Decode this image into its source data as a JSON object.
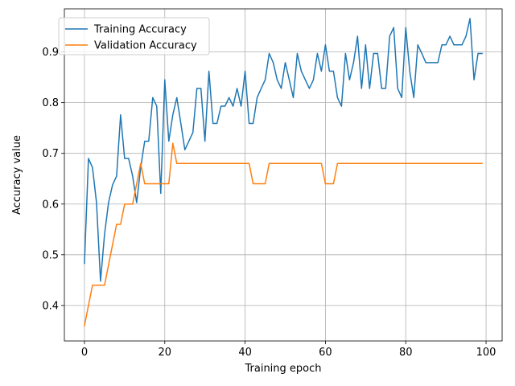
{
  "chart_data": {
    "type": "line",
    "xlabel": "Training epoch",
    "ylabel": "Accuracy value",
    "xlim": [
      -5,
      104
    ],
    "ylim": [
      0.33,
      0.985
    ],
    "xticks": [
      0,
      20,
      40,
      60,
      80,
      100
    ],
    "yticks": [
      0.4,
      0.5,
      0.6,
      0.7,
      0.8,
      0.9
    ],
    "xtick_labels": [
      "0",
      "20",
      "40",
      "60",
      "80",
      "100"
    ],
    "ytick_labels": [
      "0.4",
      "0.5",
      "0.6",
      "0.7",
      "0.8",
      "0.9"
    ],
    "grid": true,
    "legend_position": "upper-left",
    "series": [
      {
        "name": "Training Accuracy",
        "color": "#1f77b4",
        "x": [
          0,
          1,
          2,
          3,
          4,
          5,
          6,
          7,
          8,
          9,
          10,
          11,
          12,
          13,
          14,
          15,
          16,
          17,
          18,
          19,
          20,
          21,
          22,
          23,
          24,
          25,
          26,
          27,
          28,
          29,
          30,
          31,
          32,
          33,
          34,
          35,
          36,
          37,
          38,
          39,
          40,
          41,
          42,
          43,
          44,
          45,
          46,
          47,
          48,
          49,
          50,
          51,
          52,
          53,
          54,
          55,
          56,
          57,
          58,
          59,
          60,
          61,
          62,
          63,
          64,
          65,
          66,
          67,
          68,
          69,
          70,
          71,
          72,
          73,
          74,
          75,
          76,
          77,
          78,
          79,
          80,
          81,
          82,
          83,
          84,
          85,
          86,
          87,
          88,
          89,
          90,
          91,
          92,
          93,
          94,
          95,
          96,
          97,
          98,
          99
        ],
        "values": [
          0.483,
          0.69,
          0.672,
          0.603,
          0.448,
          0.54,
          0.603,
          0.638,
          0.655,
          0.776,
          0.69,
          0.69,
          0.655,
          0.603,
          0.672,
          0.724,
          0.724,
          0.81,
          0.793,
          0.621,
          0.845,
          0.724,
          0.776,
          0.81,
          0.759,
          0.707,
          0.724,
          0.741,
          0.828,
          0.828,
          0.724,
          0.862,
          0.759,
          0.759,
          0.793,
          0.793,
          0.81,
          0.793,
          0.828,
          0.793,
          0.862,
          0.759,
          0.759,
          0.81,
          0.828,
          0.845,
          0.897,
          0.879,
          0.845,
          0.828,
          0.879,
          0.845,
          0.81,
          0.897,
          0.862,
          0.845,
          0.828,
          0.845,
          0.897,
          0.862,
          0.914,
          0.862,
          0.862,
          0.81,
          0.793,
          0.897,
          0.845,
          0.879,
          0.931,
          0.828,
          0.914,
          0.828,
          0.897,
          0.897,
          0.828,
          0.828,
          0.931,
          0.948,
          0.828,
          0.81,
          0.948,
          0.862,
          0.81,
          0.914,
          0.897,
          0.879,
          0.879,
          0.879,
          0.879,
          0.914,
          0.914,
          0.931,
          0.914,
          0.914,
          0.914,
          0.931,
          0.966,
          0.845,
          0.897,
          0.897
        ]
      },
      {
        "name": "Validation Accuracy",
        "color": "#ff7f0e",
        "x": [
          0,
          1,
          2,
          3,
          4,
          5,
          6,
          7,
          8,
          9,
          10,
          11,
          12,
          13,
          14,
          15,
          16,
          17,
          18,
          19,
          20,
          21,
          22,
          23,
          24,
          25,
          26,
          27,
          28,
          29,
          30,
          31,
          32,
          33,
          34,
          35,
          36,
          37,
          38,
          39,
          40,
          41,
          42,
          43,
          44,
          45,
          46,
          47,
          48,
          49,
          50,
          51,
          52,
          53,
          54,
          55,
          56,
          57,
          58,
          59,
          60,
          61,
          62,
          63,
          64,
          65,
          66,
          67,
          68,
          69,
          70,
          71,
          72,
          73,
          74,
          75,
          76,
          77,
          78,
          79,
          80,
          81,
          82,
          83,
          84,
          85,
          86,
          87,
          88,
          89,
          90,
          91,
          92,
          93,
          94,
          95,
          96,
          97,
          98,
          99
        ],
        "values": [
          0.36,
          0.4,
          0.44,
          0.44,
          0.44,
          0.44,
          0.48,
          0.52,
          0.56,
          0.56,
          0.6,
          0.6,
          0.6,
          0.64,
          0.68,
          0.64,
          0.64,
          0.64,
          0.64,
          0.64,
          0.64,
          0.64,
          0.72,
          0.68,
          0.68,
          0.68,
          0.68,
          0.68,
          0.68,
          0.68,
          0.68,
          0.68,
          0.68,
          0.68,
          0.68,
          0.68,
          0.68,
          0.68,
          0.68,
          0.68,
          0.68,
          0.68,
          0.64,
          0.64,
          0.64,
          0.64,
          0.68,
          0.68,
          0.68,
          0.68,
          0.68,
          0.68,
          0.68,
          0.68,
          0.68,
          0.68,
          0.68,
          0.68,
          0.68,
          0.68,
          0.64,
          0.64,
          0.64,
          0.68,
          0.68,
          0.68,
          0.68,
          0.68,
          0.68,
          0.68,
          0.68,
          0.68,
          0.68,
          0.68,
          0.68,
          0.68,
          0.68,
          0.68,
          0.68,
          0.68,
          0.68,
          0.68,
          0.68,
          0.68,
          0.68,
          0.68,
          0.68,
          0.68,
          0.68,
          0.68,
          0.68,
          0.68,
          0.68,
          0.68,
          0.68,
          0.68,
          0.68,
          0.68,
          0.68,
          0.68
        ]
      }
    ]
  }
}
